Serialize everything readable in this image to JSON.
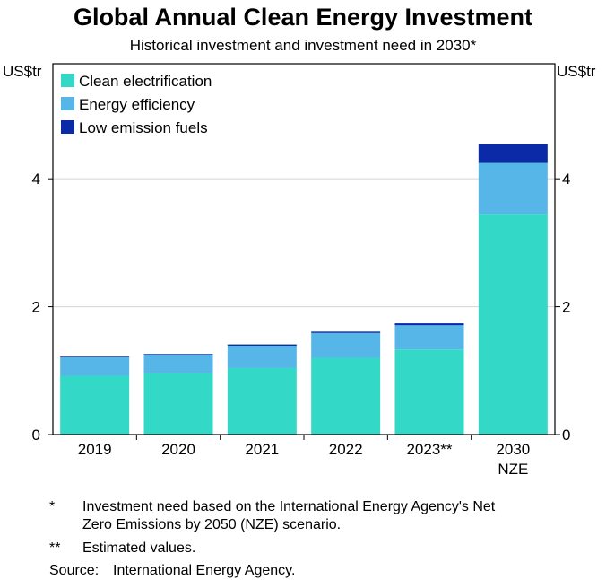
{
  "title": "Global Annual Clean Energy Investment",
  "subtitle": "Historical investment and investment need in 2030*",
  "chart_data": {
    "type": "bar",
    "stacked": true,
    "categories": [
      "2019",
      "2020",
      "2021",
      "2022",
      "2023**",
      "2030\nNZE"
    ],
    "series": [
      {
        "name": "Clean electrification",
        "color": "#33d9c6",
        "values": [
          0.92,
          0.96,
          1.04,
          1.2,
          1.33,
          3.45
        ]
      },
      {
        "name": "Energy efficiency",
        "color": "#56b6e8",
        "values": [
          0.29,
          0.29,
          0.35,
          0.39,
          0.38,
          0.81
        ]
      },
      {
        "name": "Low emission fuels",
        "color": "#0a2aa8",
        "values": [
          0.01,
          0.01,
          0.02,
          0.02,
          0.03,
          0.29
        ]
      }
    ],
    "ylabel_left": "US$tr",
    "ylabel_right": "US$tr",
    "ylim": [
      0,
      5.8
    ],
    "yticks": [
      0,
      2,
      4
    ],
    "grid": true,
    "legend_position": "top-left"
  },
  "notes": [
    {
      "mark": "*",
      "text": [
        "Investment need based on the International Energy Agency's Net",
        "Zero Emissions by 2050 (NZE) scenario."
      ]
    },
    {
      "mark": "**",
      "text": [
        "Estimated values."
      ]
    }
  ],
  "source": {
    "label": "Source:",
    "text": "International Energy Agency."
  }
}
